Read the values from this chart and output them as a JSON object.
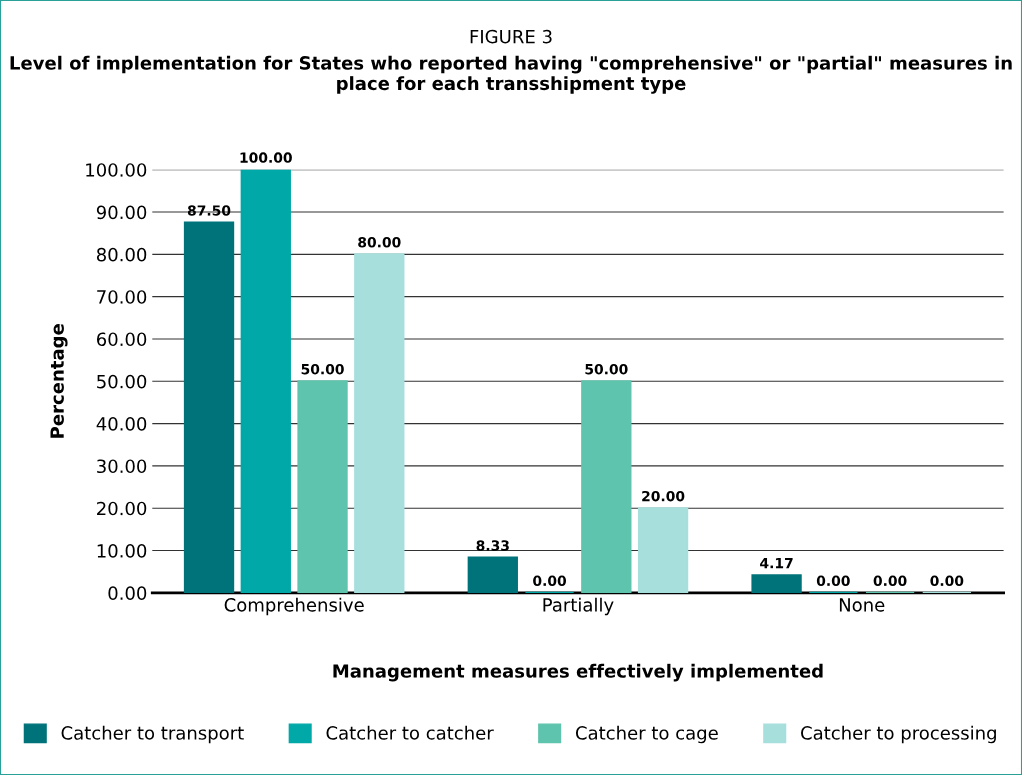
{
  "chart_data": {
    "type": "bar",
    "title": "FIGURE 3",
    "subtitle": "Level of implementation for States who reported having \"comprehensive\" or \"partial\" measures in place for each transshipment type",
    "xlabel": "Management measures effectively implemented",
    "ylabel": "Percentage",
    "categories": [
      "Comprehensive",
      "Partially",
      "None"
    ],
    "series": [
      {
        "name": "Catcher to transport",
        "color": "#00737a",
        "values": [
          87.5,
          8.33,
          4.17
        ],
        "value_labels": [
          "87.50",
          "8.33",
          "4.17"
        ]
      },
      {
        "name": "Catcher to catcher",
        "color": "#00a8a8",
        "values": [
          100,
          0,
          0
        ],
        "value_labels": [
          "100.00",
          "0.00",
          "0.00"
        ]
      },
      {
        "name": "Catcher to cage",
        "color": "#5fc4ad",
        "values": [
          50,
          50,
          0
        ],
        "value_labels": [
          "50.00",
          "50.00",
          "0.00"
        ]
      },
      {
        "name": "Catcher to processing",
        "color": "#a6dfdc",
        "values": [
          80,
          20,
          0
        ],
        "value_labels": [
          "80.00",
          "20.00",
          "0.00"
        ]
      }
    ],
    "ylim": [
      0,
      100
    ],
    "yticks": [
      {
        "value": 0,
        "label": "0.00"
      },
      {
        "value": 10,
        "label": "10.00"
      },
      {
        "value": 20,
        "label": "20.00"
      },
      {
        "value": 30,
        "label": "30.00"
      },
      {
        "value": 40,
        "label": "40.00"
      },
      {
        "value": 50,
        "label": "50.00"
      },
      {
        "value": 60,
        "label": "60.00"
      },
      {
        "value": 70,
        "label": "70.00"
      },
      {
        "value": 80,
        "label": "80.00"
      },
      {
        "value": 90,
        "label": "90.00"
      },
      {
        "value": 100,
        "label": "100.00"
      }
    ],
    "grid": "y",
    "legend": "bottom"
  }
}
